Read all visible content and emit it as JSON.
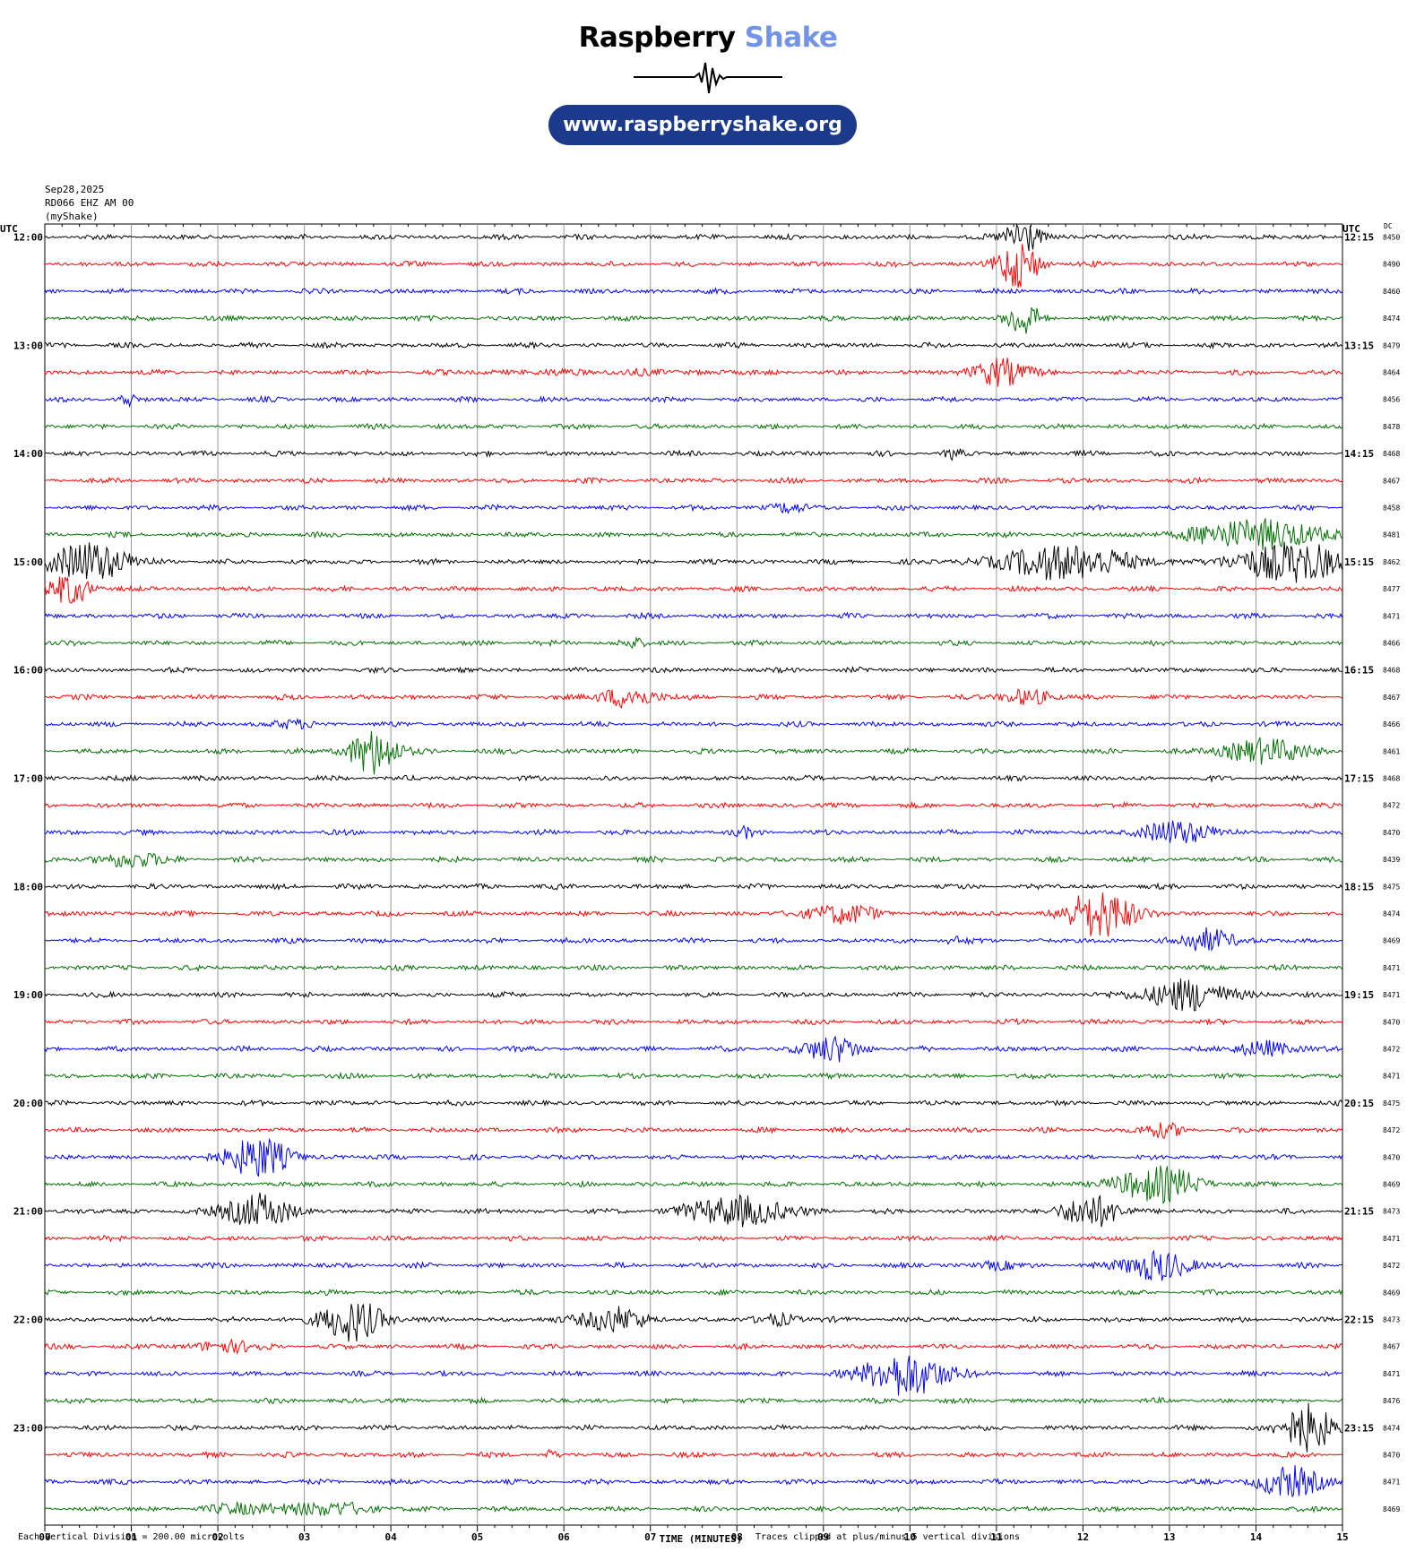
{
  "logo": {
    "word1": "Raspberry",
    "word2": "Shake",
    "url": "www.raspberryshake.org",
    "accent_color": "#7393e6",
    "pill_color": "#1b3a8c"
  },
  "meta": {
    "date": "Sep28,2025",
    "station": "RD066 EHZ AM 00",
    "source": "(myShake)"
  },
  "chart_data": {
    "type": "line",
    "title": "",
    "xlabel": "TIME (MINUTES)",
    "ylabel": "",
    "left_axis_label": "UTC",
    "right_axis_label": "UTC",
    "dc_label": "DC",
    "xlim": [
      0,
      15
    ],
    "x_ticks": [
      "00",
      "01",
      "02",
      "03",
      "04",
      "05",
      "06",
      "07",
      "08",
      "09",
      "10",
      "11",
      "12",
      "13",
      "14",
      "15"
    ],
    "grid": "vertical",
    "trace_colors": [
      "#000000",
      "#ff0000",
      "#0000ff",
      "#007000"
    ],
    "left_hour_labels": [
      "12:00",
      "13:00",
      "14:00",
      "15:00",
      "16:00",
      "17:00",
      "18:00",
      "19:00",
      "20:00",
      "21:00",
      "22:00",
      "23:00"
    ],
    "right_hour_labels": [
      "12:15",
      "13:15",
      "14:15",
      "15:15",
      "16:15",
      "17:15",
      "18:15",
      "19:15",
      "20:15",
      "21:15",
      "22:15",
      "23:15"
    ],
    "dc_offsets": [
      "8450",
      "8490",
      "8460",
      "8474",
      "8479",
      "8464",
      "8456",
      "8478",
      "8468",
      "8467",
      "8458",
      "8481",
      "8462",
      "8477",
      "8471",
      "8466",
      "8468",
      "8467",
      "8466",
      "8461",
      "8468",
      "8472",
      "8470",
      "8439",
      "8475",
      "8474",
      "8469",
      "8471",
      "8471",
      "8470",
      "8472",
      "8471",
      "8475",
      "8472",
      "8470",
      "8469",
      "8473",
      "8471",
      "8472",
      "8469",
      "8473",
      "8467",
      "8471",
      "8476",
      "8474",
      "8470",
      "8471",
      "8469"
    ],
    "events": [
      {
        "row": 1,
        "x": 11.25,
        "amp": 5.0,
        "dur": 0.5
      },
      {
        "row": 0,
        "x": 11.3,
        "amp": 4.0,
        "dur": 0.4
      },
      {
        "row": 3,
        "x": 11.3,
        "amp": 3.5,
        "dur": 0.4
      },
      {
        "row": 5,
        "x": 11.05,
        "amp": 3.0,
        "dur": 0.6
      },
      {
        "row": 5,
        "x": 6.5,
        "amp": 0.3,
        "dur": 3.0
      },
      {
        "row": 6,
        "x": 0.95,
        "amp": 1.3,
        "dur": 0.2
      },
      {
        "row": 8,
        "x": 10.5,
        "amp": 1.0,
        "dur": 0.2
      },
      {
        "row": 10,
        "x": 8.6,
        "amp": 1.0,
        "dur": 0.4
      },
      {
        "row": 12,
        "x": 0.5,
        "amp": 4.0,
        "dur": 1.0
      },
      {
        "row": 13,
        "x": 0.3,
        "amp": 3.0,
        "dur": 0.5
      },
      {
        "row": 12,
        "x": 11.8,
        "amp": 3.5,
        "dur": 1.6
      },
      {
        "row": 12,
        "x": 14.4,
        "amp": 4.0,
        "dur": 1.3
      },
      {
        "row": 11,
        "x": 14.0,
        "amp": 3.0,
        "dur": 1.6
      },
      {
        "row": 15,
        "x": 6.8,
        "amp": 1.0,
        "dur": 0.3
      },
      {
        "row": 17,
        "x": 6.75,
        "amp": 2.0,
        "dur": 0.7
      },
      {
        "row": 17,
        "x": 11.35,
        "amp": 1.5,
        "dur": 0.6
      },
      {
        "row": 18,
        "x": 2.85,
        "amp": 0.8,
        "dur": 0.5
      },
      {
        "row": 19,
        "x": 3.8,
        "amp": 4.5,
        "dur": 0.6
      },
      {
        "row": 19,
        "x": 14.1,
        "amp": 2.5,
        "dur": 1.0
      },
      {
        "row": 22,
        "x": 8.1,
        "amp": 0.8,
        "dur": 0.3
      },
      {
        "row": 22,
        "x": 13.1,
        "amp": 2.5,
        "dur": 0.8
      },
      {
        "row": 23,
        "x": 1.0,
        "amp": 1.5,
        "dur": 0.8
      },
      {
        "row": 25,
        "x": 9.2,
        "amp": 2.0,
        "dur": 0.8
      },
      {
        "row": 25,
        "x": 12.2,
        "amp": 5.0,
        "dur": 0.8
      },
      {
        "row": 26,
        "x": 13.45,
        "amp": 2.5,
        "dur": 0.6
      },
      {
        "row": 26,
        "x": 10.5,
        "amp": 0.6,
        "dur": 0.3
      },
      {
        "row": 28,
        "x": 13.2,
        "amp": 3.0,
        "dur": 1.1
      },
      {
        "row": 30,
        "x": 9.1,
        "amp": 2.5,
        "dur": 0.7
      },
      {
        "row": 30,
        "x": 14.1,
        "amp": 1.5,
        "dur": 0.7
      },
      {
        "row": 34,
        "x": 2.45,
        "amp": 4.0,
        "dur": 0.8
      },
      {
        "row": 33,
        "x": 12.9,
        "amp": 1.2,
        "dur": 0.6
      },
      {
        "row": 35,
        "x": 12.85,
        "amp": 3.5,
        "dur": 1.0
      },
      {
        "row": 36,
        "x": 2.45,
        "amp": 3.5,
        "dur": 0.8
      },
      {
        "row": 36,
        "x": 8.0,
        "amp": 3.0,
        "dur": 1.2
      },
      {
        "row": 36,
        "x": 12.1,
        "amp": 3.0,
        "dur": 0.8
      },
      {
        "row": 38,
        "x": 12.85,
        "amp": 3.0,
        "dur": 0.8
      },
      {
        "row": 38,
        "x": 11.0,
        "amp": 0.8,
        "dur": 0.4
      },
      {
        "row": 40,
        "x": 3.55,
        "amp": 4.0,
        "dur": 0.8
      },
      {
        "row": 40,
        "x": 6.55,
        "amp": 2.5,
        "dur": 0.8
      },
      {
        "row": 40,
        "x": 8.5,
        "amp": 1.2,
        "dur": 0.5
      },
      {
        "row": 41,
        "x": 2.1,
        "amp": 1.2,
        "dur": 0.7
      },
      {
        "row": 42,
        "x": 9.95,
        "amp": 4.5,
        "dur": 1.0
      },
      {
        "row": 44,
        "x": 14.6,
        "amp": 5.0,
        "dur": 0.6
      },
      {
        "row": 45,
        "x": 5.85,
        "amp": 0.8,
        "dur": 0.15
      },
      {
        "row": 46,
        "x": 14.4,
        "amp": 3.0,
        "dur": 0.8
      },
      {
        "row": 47,
        "x": 2.4,
        "amp": 1.0,
        "dur": 1.0
      },
      {
        "row": 47,
        "x": 3.35,
        "amp": 1.2,
        "dur": 1.0
      }
    ]
  },
  "footer": {
    "scale_note": "Each Vertical Division =  200.00 microvolts",
    "clip_note": "Traces clipped at plus/minus 5 vertical divisions"
  }
}
